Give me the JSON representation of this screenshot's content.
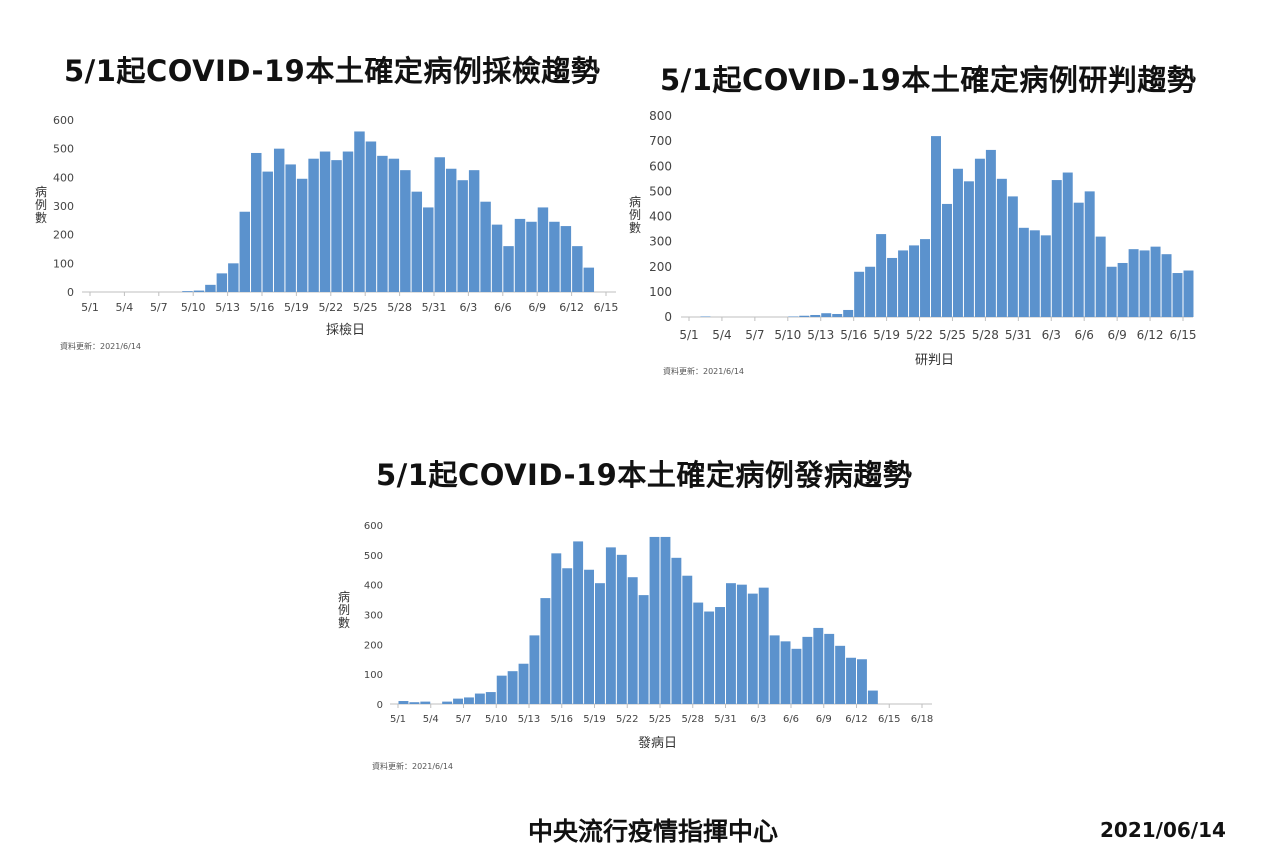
{
  "charts": [
    {
      "title": "5/1起COVID-19本土確定病例採檢趨勢",
      "xlabel": "採檢日",
      "ylabel": "病例數",
      "note": "資料更新：2021/6/14"
    },
    {
      "title": "5/1起COVID-19本土確定病例研判趨勢",
      "xlabel": "研判日",
      "ylabel": "病例數",
      "note": "資料更新：2021/6/14"
    },
    {
      "title": "5/1起COVID-19本土確定病例發病趨勢",
      "xlabel": "發病日",
      "ylabel": "病例數",
      "note": "資料更新：2021/6/14"
    }
  ],
  "chart_data": [
    {
      "type": "bar",
      "title": "5/1起COVID-19本土確定病例採檢趨勢",
      "xlabel": "採檢日",
      "ylabel": "病例數",
      "x_start": "5/1",
      "x_ticks": [
        "5/1",
        "5/4",
        "5/7",
        "5/10",
        "5/13",
        "5/16",
        "5/19",
        "5/22",
        "5/25",
        "5/28",
        "5/31",
        "6/3",
        "6/6",
        "6/9",
        "6/12",
        "6/15"
      ],
      "ylim": [
        0,
        600
      ],
      "y_ticks": [
        0,
        100,
        200,
        300,
        400,
        500,
        600
      ],
      "values": [
        0,
        0,
        0,
        0,
        0,
        0,
        0,
        0,
        3,
        5,
        25,
        65,
        100,
        280,
        485,
        420,
        500,
        445,
        395,
        465,
        490,
        460,
        490,
        560,
        525,
        475,
        465,
        425,
        350,
        295,
        470,
        430,
        390,
        425,
        315,
        235,
        160,
        255,
        245,
        295,
        245,
        230,
        160,
        85
      ],
      "color": "#5b92cd"
    },
    {
      "type": "bar",
      "title": "5/1起COVID-19本土確定病例研判趨勢",
      "xlabel": "研判日",
      "ylabel": "病例數",
      "x_start": "5/1",
      "x_ticks": [
        "5/1",
        "5/4",
        "5/7",
        "5/10",
        "5/13",
        "5/16",
        "5/19",
        "5/22",
        "5/25",
        "5/28",
        "5/31",
        "6/3",
        "6/6",
        "6/9",
        "6/12",
        "6/15"
      ],
      "ylim": [
        0,
        800
      ],
      "y_ticks": [
        0,
        100,
        200,
        300,
        400,
        500,
        600,
        700,
        800
      ],
      "values": [
        0,
        2,
        0,
        0,
        0,
        0,
        0,
        0,
        0,
        2,
        5,
        8,
        15,
        12,
        28,
        180,
        200,
        330,
        235,
        265,
        285,
        310,
        720,
        450,
        590,
        540,
        630,
        665,
        550,
        480,
        355,
        345,
        325,
        545,
        575,
        455,
        500,
        320,
        200,
        215,
        270,
        265,
        280,
        250,
        175,
        185
      ],
      "color": "#5b92cd"
    },
    {
      "type": "bar",
      "title": "5/1起COVID-19本土確定病例發病趨勢",
      "xlabel": "發病日",
      "ylabel": "病例數",
      "x_start": "5/1",
      "x_ticks": [
        "5/1",
        "5/4",
        "5/7",
        "5/10",
        "5/13",
        "5/16",
        "5/19",
        "5/22",
        "5/25",
        "5/28",
        "5/31",
        "6/3",
        "6/6",
        "6/9",
        "6/12",
        "6/15",
        "6/18"
      ],
      "ylim": [
        0,
        600
      ],
      "y_ticks": [
        0,
        100,
        200,
        300,
        400,
        500,
        600
      ],
      "values": [
        10,
        6,
        8,
        0,
        8,
        18,
        22,
        35,
        40,
        95,
        110,
        135,
        230,
        355,
        505,
        455,
        545,
        450,
        405,
        525,
        500,
        425,
        365,
        560,
        560,
        490,
        430,
        340,
        310,
        325,
        405,
        400,
        370,
        390,
        230,
        210,
        185,
        225,
        255,
        235,
        195,
        155,
        150,
        45,
        0,
        0,
        0,
        0,
        0,
        0,
        0
      ],
      "color": "#5b92cd"
    }
  ],
  "footer": {
    "org": "中央流行疫情指揮中心",
    "date": "2021/06/14"
  }
}
